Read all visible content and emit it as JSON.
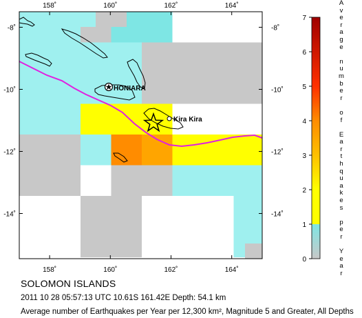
{
  "map": {
    "lon_ticks": [
      158,
      160,
      162,
      164
    ],
    "lat_ticks": [
      -8,
      -10,
      -12,
      -14
    ],
    "lon_labels": [
      "158˚",
      "160˚",
      "162˚",
      "164˚"
    ],
    "lat_labels": [
      "-8˚",
      "-10˚",
      "-12˚",
      "-14˚"
    ],
    "places": [
      {
        "name": "HONIARA",
        "lon": 159.95,
        "lat": -9.43
      },
      {
        "name": "Kira Kira",
        "lon": 161.92,
        "lat": -10.45
      }
    ],
    "epicenter": {
      "lon": 161.42,
      "lat": -10.61
    },
    "colors": {
      "boundary": "#e020e0",
      "coast": "#000000",
      "bin_0": "#c8c8c8",
      "bin_1": "#9ff0ef",
      "bin_2": "#7ee6e4",
      "bin_3": "#ffff00",
      "bin_4": "#ffc400",
      "bin_5": "#ffa500",
      "bin_6": "#ff8c00"
    }
  },
  "colorbar": {
    "title": "Average number of Earthquakes per Year",
    "ticks": [
      "0",
      "1",
      "2",
      "3",
      "4",
      "5",
      "6",
      "7"
    ],
    "colors": [
      "#c8c8c8",
      "#9ff0ef",
      "#ffff00",
      "#ffc000",
      "#ff8000",
      "#ff0000",
      "#b00000"
    ]
  },
  "caption": {
    "title": "SOLOMON ISLANDS",
    "event": "2011 10 28 05:57:13 UTC 10.61S 161.42E Depth: 54.1 km",
    "note": "Average number of Earthquakes per Year per 12,300 km², Magnitude 5 and Greater, All Depths"
  }
}
